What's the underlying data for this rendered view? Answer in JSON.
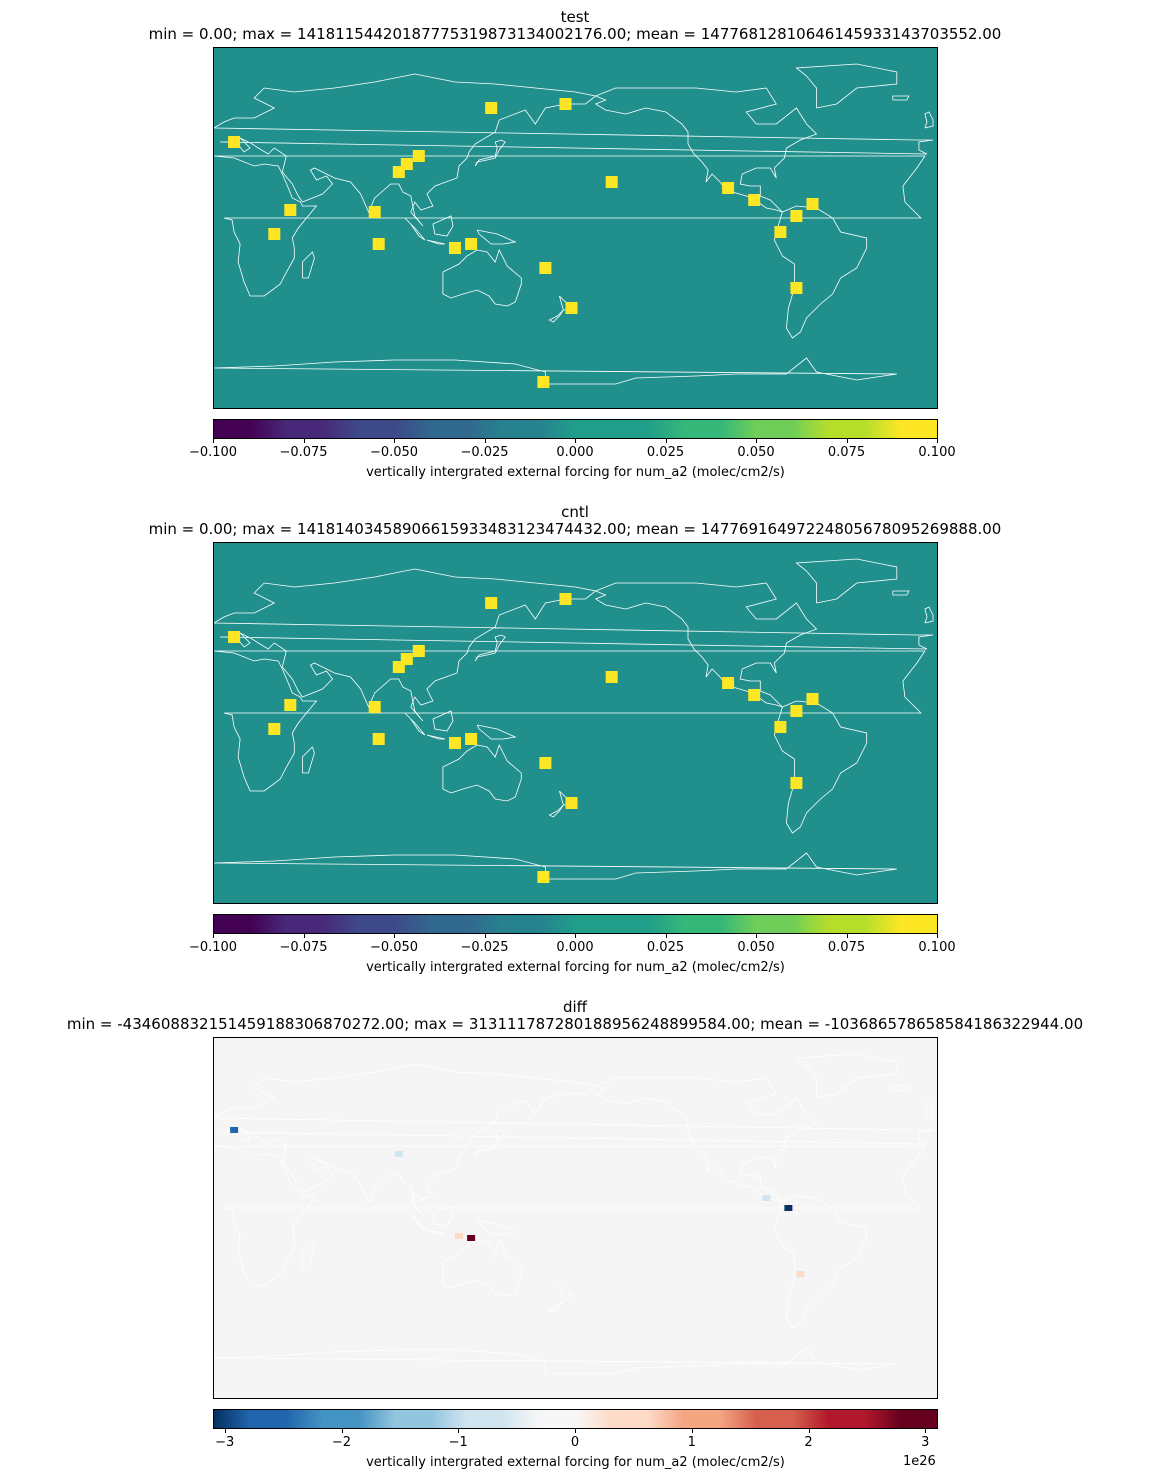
{
  "panels": [
    {
      "title": "test",
      "stats": "min = 0.00; max = 1418115442018777531987313400217 6.00; mean = 1477681281064614593314370355 2.00",
      "colormap": "viridis",
      "colorbar_label": "vertically intergrated external forcing for num_a2 (molec/cm2/s)",
      "ticks": [
        "−0.100",
        "−0.075",
        "−0.050",
        "−0.025",
        "0.000",
        "0.025",
        "0.050",
        "0.075",
        "0.100"
      ],
      "offset_text": ""
    },
    {
      "title": "cntl",
      "stats": "min = 0.00; max = 1418140345890661593348312347 4432.00; mean = 1477691649722480567809526988 8.00",
      "colormap": "viridis",
      "colorbar_label": "vertically intergrated external forcing for num_a2 (molec/cm2/s)",
      "ticks": [
        "−0.100",
        "−0.075",
        "−0.050",
        "−0.025",
        "0.000",
        "0.025",
        "0.050",
        "0.075",
        "0.100"
      ],
      "offset_text": ""
    },
    {
      "title": "diff",
      "stats": "min = -4346088321514591883068702 72.00; max = 3131117872801889562488995 84.00; mean = -103686578658584186322944.00",
      "colormap": "RdBu_r",
      "colorbar_label": "vertically intergrated external forcing for num_a2 (molec/cm2/s)",
      "ticks": [
        "−3",
        "−2",
        "−1",
        "0",
        "1",
        "2",
        "3"
      ],
      "offset_text": "1e26"
    }
  ],
  "colors": {
    "viridis_mid": "#21908d",
    "viridis_max": "#fde725",
    "coast": "#ffffff",
    "diff_bg": "#f5f5f5"
  },
  "chart_data": [
    {
      "type": "heatmap",
      "title": "test",
      "colorbar_range": [
        -0.1,
        0.1
      ],
      "colorbar_ticks": [
        -0.1,
        -0.075,
        -0.05,
        -0.025,
        0.0,
        0.025,
        0.05,
        0.075,
        0.1
      ],
      "background_value": 0.0,
      "hotspots_lonlat": [
        [
          10,
          43
        ],
        [
          38,
          9
        ],
        [
          30,
          -3
        ],
        [
          80,
          8
        ],
        [
          82,
          -8
        ],
        [
          92,
          28
        ],
        [
          96,
          32
        ],
        [
          102,
          36
        ],
        [
          138,
          60
        ],
        [
          175,
          62
        ],
        [
          -62,
          12
        ],
        [
          -91,
          14
        ],
        [
          -104,
          20
        ],
        [
          -70,
          6
        ],
        [
          -78,
          -2
        ],
        [
          -70,
          -30
        ],
        [
          120,
          -10
        ],
        [
          128,
          -8
        ],
        [
          165,
          -20
        ],
        [
          178,
          -40
        ],
        [
          164,
          -77
        ],
        [
          -162,
          23
        ]
      ]
    },
    {
      "type": "heatmap",
      "title": "cntl",
      "colorbar_range": [
        -0.1,
        0.1
      ],
      "colorbar_ticks": [
        -0.1,
        -0.075,
        -0.05,
        -0.025,
        0.0,
        0.025,
        0.05,
        0.075,
        0.1
      ],
      "background_value": 0.0,
      "hotspots_lonlat": [
        [
          10,
          43
        ],
        [
          38,
          9
        ],
        [
          30,
          -3
        ],
        [
          80,
          8
        ],
        [
          82,
          -8
        ],
        [
          92,
          28
        ],
        [
          96,
          32
        ],
        [
          102,
          36
        ],
        [
          138,
          60
        ],
        [
          175,
          62
        ],
        [
          -62,
          12
        ],
        [
          -91,
          14
        ],
        [
          -104,
          20
        ],
        [
          -70,
          6
        ],
        [
          -78,
          -2
        ],
        [
          -70,
          -30
        ],
        [
          120,
          -10
        ],
        [
          128,
          -8
        ],
        [
          165,
          -20
        ],
        [
          178,
          -40
        ],
        [
          164,
          -77
        ],
        [
          -162,
          23
        ]
      ]
    },
    {
      "type": "heatmap",
      "title": "diff",
      "colorbar_range": [
        -3.1,
        3.1
      ],
      "colorbar_scale": "1e26",
      "colorbar_ticks": [
        -3,
        -2,
        -1,
        0,
        1,
        2,
        3
      ],
      "background_value": 0.0,
      "anomalies_lonlat_value": [
        [
          10,
          44,
          -2.5
        ],
        [
          -74,
          5,
          -3.0
        ],
        [
          -85,
          10,
          -0.8
        ],
        [
          128,
          -10,
          2.8
        ],
        [
          122,
          -9,
          0.8
        ],
        [
          92,
          32,
          -0.4
        ],
        [
          -68,
          -28,
          0.4
        ],
        [
          138,
          -18,
          0.3
        ]
      ]
    }
  ]
}
